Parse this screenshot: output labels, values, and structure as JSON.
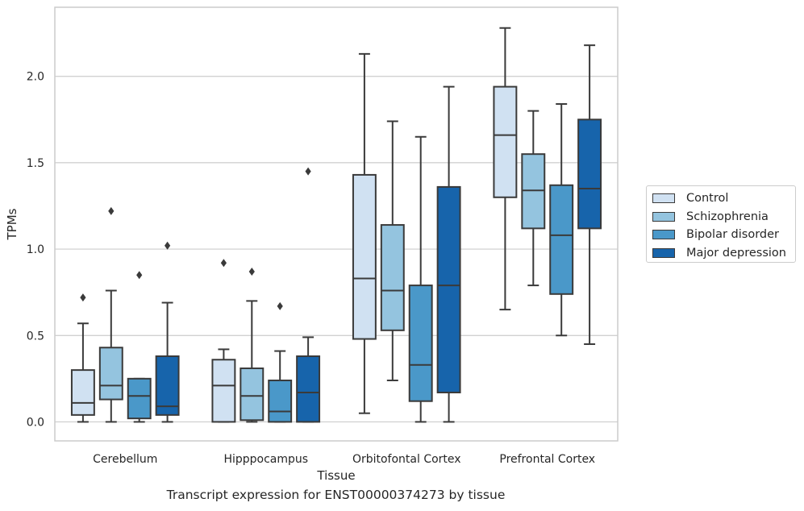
{
  "chart_data": {
    "type": "box",
    "xlabel": "Tissue",
    "ylabel": "TPMs",
    "caption": "Transcript expression for ENST00000374273 by tissue",
    "ylim": [
      -0.11,
      2.4
    ],
    "yticks": [
      "0.0",
      "0.5",
      "1.0",
      "1.5",
      "2.0"
    ],
    "ytick_values": [
      0.0,
      0.5,
      1.0,
      1.5,
      2.0
    ],
    "grid": "horizontal",
    "legend_position": "right",
    "categories": [
      "Cerebellum",
      "Hipppocampus",
      "Orbitofontal Cortex",
      "Prefrontal Cortex"
    ],
    "series": [
      {
        "name": "Control",
        "color": "#d0e1f2",
        "boxes": [
          {
            "whislo": 0.0,
            "q1": 0.04,
            "med": 0.11,
            "q3": 0.3,
            "whishi": 0.57,
            "fliers": [
              0.72
            ]
          },
          {
            "whislo": 0.0,
            "q1": 0.0,
            "med": 0.21,
            "q3": 0.36,
            "whishi": 0.42,
            "fliers": [
              0.92
            ]
          },
          {
            "whislo": 0.05,
            "q1": 0.48,
            "med": 0.83,
            "q3": 1.43,
            "whishi": 2.13,
            "fliers": []
          },
          {
            "whislo": 0.65,
            "q1": 1.3,
            "med": 1.66,
            "q3": 1.94,
            "whishi": 2.28,
            "fliers": []
          }
        ]
      },
      {
        "name": "Schizophrenia",
        "color": "#94c4df",
        "boxes": [
          {
            "whislo": 0.0,
            "q1": 0.13,
            "med": 0.21,
            "q3": 0.43,
            "whishi": 0.76,
            "fliers": [
              1.22
            ]
          },
          {
            "whislo": 0.0,
            "q1": 0.01,
            "med": 0.15,
            "q3": 0.31,
            "whishi": 0.7,
            "fliers": [
              0.87
            ]
          },
          {
            "whislo": 0.24,
            "q1": 0.53,
            "med": 0.76,
            "q3": 1.14,
            "whishi": 1.74,
            "fliers": []
          },
          {
            "whislo": 0.79,
            "q1": 1.12,
            "med": 1.34,
            "q3": 1.55,
            "whishi": 1.8,
            "fliers": []
          }
        ]
      },
      {
        "name": "Bipolar disorder",
        "color": "#4a98c9",
        "boxes": [
          {
            "whislo": 0.0,
            "q1": 0.02,
            "med": 0.15,
            "q3": 0.25,
            "whishi": 0.25,
            "fliers": [
              0.85
            ]
          },
          {
            "whislo": 0.0,
            "q1": 0.0,
            "med": 0.06,
            "q3": 0.24,
            "whishi": 0.41,
            "fliers": [
              0.67
            ]
          },
          {
            "whislo": 0.0,
            "q1": 0.12,
            "med": 0.33,
            "q3": 0.79,
            "whishi": 1.65,
            "fliers": []
          },
          {
            "whislo": 0.5,
            "q1": 0.74,
            "med": 1.08,
            "q3": 1.37,
            "whishi": 1.84,
            "fliers": []
          }
        ]
      },
      {
        "name": "Major depression",
        "color": "#1764ab",
        "boxes": [
          {
            "whislo": 0.0,
            "q1": 0.04,
            "med": 0.09,
            "q3": 0.38,
            "whishi": 0.69,
            "fliers": [
              1.02
            ]
          },
          {
            "whislo": 0.0,
            "q1": 0.0,
            "med": 0.17,
            "q3": 0.38,
            "whishi": 0.49,
            "fliers": [
              1.45
            ]
          },
          {
            "whislo": 0.0,
            "q1": 0.17,
            "med": 0.79,
            "q3": 1.36,
            "whishi": 1.94,
            "fliers": []
          },
          {
            "whislo": 0.45,
            "q1": 1.12,
            "med": 1.35,
            "q3": 1.75,
            "whishi": 2.18,
            "fliers": []
          }
        ]
      }
    ],
    "colors": {
      "line": "#3a3a3a",
      "grid": "#cccccc",
      "frame": "#cccccc"
    }
  }
}
